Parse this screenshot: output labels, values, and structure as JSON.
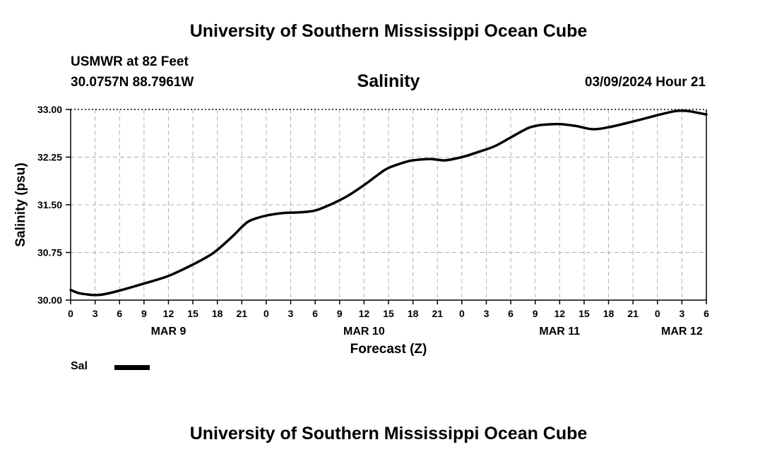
{
  "header": {
    "main_title": "University of Southern Mississippi Ocean Cube",
    "station": "USMWR at 82 Feet",
    "coords": "30.0757N  88.7961W",
    "datetime": "03/09/2024 Hour 21"
  },
  "footer": {
    "title": "University of Southern Mississippi Ocean Cube"
  },
  "legend": {
    "label": "Sal"
  },
  "chart_data": {
    "type": "line",
    "title": "Salinity",
    "xlabel": "Forecast (Z)",
    "ylabel": "Salinity (psu)",
    "ylim": [
      30.0,
      33.0
    ],
    "yticks": [
      "30.00",
      "30.75",
      "31.50",
      "32.25",
      "33.00"
    ],
    "xlim_hours": [
      0,
      78
    ],
    "xtick_labels": [
      "0",
      "3",
      "6",
      "9",
      "12",
      "15",
      "18",
      "21",
      "0",
      "3",
      "6",
      "9",
      "12",
      "15",
      "18",
      "21",
      "0",
      "3",
      "6",
      "9",
      "12",
      "15",
      "18",
      "21",
      "0",
      "3",
      "6"
    ],
    "day_labels": [
      {
        "label": "MAR 9",
        "hour": 12
      },
      {
        "label": "MAR 10",
        "hour": 36
      },
      {
        "label": "MAR 11",
        "hour": 60
      },
      {
        "label": "MAR 12",
        "hour": 75
      }
    ],
    "grid": true,
    "series": [
      {
        "name": "Sal",
        "color": "#000000",
        "x": [
          0,
          1,
          2,
          3,
          4,
          6,
          9,
          12,
          15,
          17,
          18,
          20,
          21,
          22,
          24,
          26,
          28,
          30,
          32,
          34,
          36,
          38,
          39,
          41,
          42,
          44,
          45,
          46,
          48,
          50,
          52,
          54,
          56,
          57,
          58,
          60,
          62,
          64,
          66,
          69,
          72,
          74,
          75,
          76,
          78
        ],
        "y": [
          30.16,
          30.11,
          30.09,
          30.08,
          30.09,
          30.15,
          30.26,
          30.38,
          30.56,
          30.7,
          30.79,
          31.02,
          31.15,
          31.25,
          31.33,
          31.37,
          31.38,
          31.41,
          31.51,
          31.64,
          31.81,
          32.0,
          32.08,
          32.17,
          32.2,
          32.22,
          32.21,
          32.2,
          32.25,
          32.33,
          32.42,
          32.56,
          32.7,
          32.74,
          32.76,
          32.77,
          32.74,
          32.69,
          32.72,
          32.81,
          32.91,
          32.97,
          32.98,
          32.97,
          32.92
        ]
      }
    ]
  }
}
